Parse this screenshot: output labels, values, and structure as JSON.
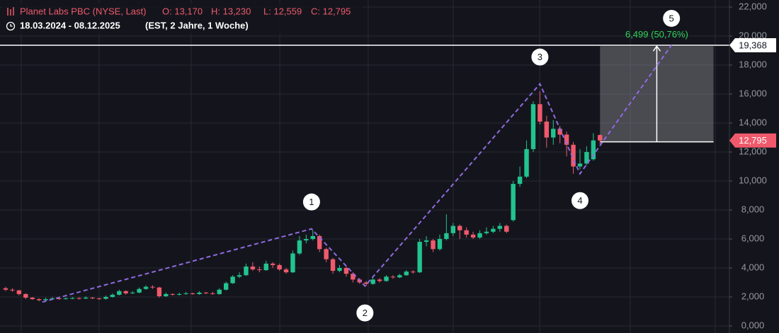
{
  "chart_data": {
    "type": "candlestick",
    "header": {
      "name": "Planet Labs PBC (NYSE, Last)",
      "open": "O: 13,170",
      "high": "H: 13,230",
      "low": "L: 12,559",
      "close": "C: 12,795",
      "range": "18.03.2024 - 08.12.2025",
      "info": "(EST, 2 Jahre, 1 Woche)"
    },
    "up_color": "#22c38e",
    "down_color": "#f0596c",
    "ylim": [
      0,
      22000
    ],
    "yticks": [
      {
        "value": 0,
        "label": "0,000"
      },
      {
        "value": 2000,
        "label": "2,000"
      },
      {
        "value": 4000,
        "label": "4,000"
      },
      {
        "value": 6000,
        "label": "6,000"
      },
      {
        "value": 8000,
        "label": "8,000"
      },
      {
        "value": 10000,
        "label": "10,000"
      },
      {
        "value": 12000,
        "label": "12,000"
      },
      {
        "value": 14000,
        "label": "14,000"
      },
      {
        "value": 16000,
        "label": "16,000"
      },
      {
        "value": 18000,
        "label": "18,000"
      },
      {
        "value": 20000,
        "label": "20,000"
      },
      {
        "value": 22000,
        "label": "22,000"
      }
    ],
    "grid": true,
    "open": [
      2600,
      2500,
      2450,
      2200,
      1950,
      1850,
      1780,
      1850,
      1900,
      1880,
      1900,
      1920,
      1890,
      1950,
      1900,
      1870,
      2000,
      2150,
      2400,
      2250,
      2300,
      2550,
      2700,
      2650,
      2050,
      2200,
      2150,
      2200,
      2250,
      2200,
      2300,
      2250,
      2200,
      2500,
      2950,
      3400,
      3500,
      4100,
      3900,
      3850,
      4300,
      4200,
      3900,
      3700,
      5000,
      5900,
      6000,
      6200,
      5300,
      4600,
      3800,
      4000,
      3600,
      3200,
      3000,
      2900,
      3200,
      3100,
      3400,
      3350,
      3500,
      3750,
      3700,
      5800,
      5900,
      5300,
      6000,
      6400,
      6900,
      6600,
      6300,
      6100,
      6400,
      6500,
      6700,
      6900,
      7300,
      9800,
      10300,
      12200,
      15300,
      14100,
      13000,
      13600,
      13200,
      12500,
      11000,
      11200,
      11500,
      13170
    ],
    "high": [
      2700,
      2600,
      2500,
      2250,
      2000,
      1900,
      1950,
      2000,
      1950,
      1980,
      2000,
      1980,
      2050,
      2000,
      1950,
      2100,
      2250,
      2500,
      2450,
      2400,
      2650,
      2800,
      2800,
      2700,
      2300,
      2250,
      2300,
      2350,
      2300,
      2400,
      2350,
      2350,
      2600,
      3050,
      3500,
      3700,
      4300,
      4400,
      4100,
      4500,
      4400,
      4300,
      4000,
      5200,
      6200,
      6300,
      6600,
      6300,
      5400,
      4700,
      4200,
      4100,
      3700,
      3300,
      3100,
      3300,
      3300,
      3500,
      3500,
      3600,
      3850,
      3850,
      6000,
      6200,
      6000,
      6300,
      7700,
      7100,
      7000,
      6800,
      6500,
      6600,
      6800,
      6900,
      7100,
      7000,
      10000,
      11000,
      12800,
      15500,
      16200,
      14500,
      14200,
      13800,
      13400,
      12700,
      12200,
      12400,
      13300,
      13230
    ],
    "low": [
      2400,
      2350,
      2100,
      1850,
      1800,
      1700,
      1700,
      1800,
      1800,
      1820,
      1850,
      1820,
      1850,
      1850,
      1800,
      1820,
      1950,
      2100,
      2150,
      2200,
      2250,
      2500,
      2550,
      1950,
      2000,
      2100,
      2100,
      2150,
      2150,
      2150,
      2200,
      2150,
      2150,
      2450,
      2900,
      3300,
      3450,
      3800,
      3700,
      3800,
      4000,
      3800,
      3600,
      3650,
      4900,
      5700,
      5900,
      5100,
      4400,
      3600,
      3700,
      3400,
      3000,
      2900,
      2750,
      2850,
      3000,
      3050,
      3250,
      3300,
      3450,
      3600,
      3650,
      5500,
      5100,
      5200,
      5900,
      6200,
      6000,
      6100,
      6000,
      6000,
      6300,
      6400,
      6500,
      6400,
      7200,
      9600,
      10200,
      12000,
      13900,
      12300,
      12500,
      12600,
      11700,
      10500,
      10800,
      11100,
      11400,
      12559
    ],
    "close": [
      2500,
      2450,
      2200,
      1950,
      1850,
      1780,
      1850,
      1900,
      1880,
      1900,
      1920,
      1890,
      1950,
      1900,
      1870,
      2000,
      2150,
      2400,
      2250,
      2300,
      2550,
      2700,
      2650,
      2050,
      2200,
      2150,
      2200,
      2250,
      2200,
      2300,
      2250,
      2200,
      2500,
      2950,
      3400,
      3500,
      4100,
      3900,
      3850,
      4300,
      4200,
      3900,
      3700,
      5000,
      5900,
      6000,
      6200,
      5300,
      4600,
      3800,
      4000,
      3600,
      3200,
      3000,
      2900,
      3200,
      3100,
      3400,
      3350,
      3500,
      3750,
      3700,
      5800,
      5900,
      5300,
      6000,
      6400,
      6900,
      6600,
      6300,
      6100,
      6400,
      6500,
      6700,
      6900,
      6500,
      9800,
      10300,
      12200,
      15300,
      14100,
      13000,
      13600,
      13200,
      12500,
      11000,
      11200,
      12000,
      12800,
      12795
    ],
    "last_price": {
      "value": 12795,
      "label": "12,795"
    },
    "level": {
      "value": 19368,
      "label": "19,368"
    },
    "wave": {
      "color": "#8f6ae0",
      "x": [
        5.5,
        45.8,
        53.8,
        80,
        86,
        99.7
      ],
      "values": [
        1650,
        6700,
        2750,
        16700,
        10500,
        19368
      ],
      "labels": [
        null,
        "1",
        "2",
        "3",
        "4",
        "5"
      ]
    },
    "measure": {
      "x": [
        89,
        106
      ],
      "from": 12700,
      "to": 19300,
      "label": "6,499 (50,76%)",
      "color": "#2fd35a"
    }
  }
}
